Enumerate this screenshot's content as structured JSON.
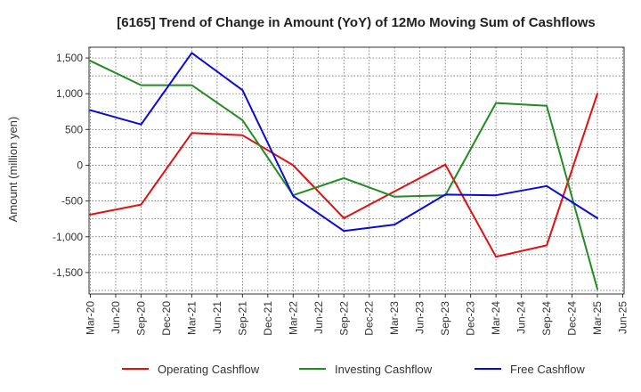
{
  "chart_data": {
    "type": "line",
    "title": "[6165]  Trend of Change in Amount (YoY) of 12Mo Moving Sum of Cashflows",
    "xlabel": "",
    "ylabel": "Amount (million yen)",
    "ylim": [
      -1800,
      1650
    ],
    "yticks": [
      1500,
      1000,
      500,
      0,
      -500,
      -1000,
      -1500
    ],
    "ytick_labels": [
      "1,500",
      "1,000",
      "500",
      "0",
      "-500",
      "-1,000",
      "-1,500"
    ],
    "categories": [
      "Mar-20",
      "Jun-20",
      "Sep-20",
      "Dec-20",
      "Mar-21",
      "Jun-21",
      "Sep-21",
      "Dec-21",
      "Mar-22",
      "Jun-22",
      "Sep-22",
      "Dec-22",
      "Mar-23",
      "Jun-23",
      "Sep-23",
      "Dec-23",
      "Mar-24",
      "Jun-24",
      "Sep-24",
      "Dec-24",
      "Mar-25",
      "Jun-25"
    ],
    "grid": true,
    "legend_position": "bottom",
    "series": [
      {
        "name": "Operating Cashflow",
        "color": "#e01010",
        "points": [
          {
            "x": "Mar-20",
            "y": -690
          },
          {
            "x": "Sep-20",
            "y": -550
          },
          {
            "x": "Mar-21",
            "y": 450
          },
          {
            "x": "Sep-21",
            "y": 420
          },
          {
            "x": "Mar-22",
            "y": 0
          },
          {
            "x": "Sep-22",
            "y": -740
          },
          {
            "x": "Sep-23",
            "y": 10
          },
          {
            "x": "Mar-24",
            "y": -1280
          },
          {
            "x": "Sep-24",
            "y": -1120
          },
          {
            "x": "Mar-25",
            "y": 1000
          }
        ]
      },
      {
        "name": "Investing Cashflow",
        "color": "#228b22",
        "points": [
          {
            "x": "Mar-20",
            "y": 1460
          },
          {
            "x": "Sep-20",
            "y": 1120
          },
          {
            "x": "Mar-21",
            "y": 1120
          },
          {
            "x": "Sep-21",
            "y": 630
          },
          {
            "x": "Mar-22",
            "y": -420
          },
          {
            "x": "Sep-22",
            "y": -180
          },
          {
            "x": "Mar-23",
            "y": -440
          },
          {
            "x": "Sep-23",
            "y": -420
          },
          {
            "x": "Mar-24",
            "y": 870
          },
          {
            "x": "Sep-24",
            "y": 830
          },
          {
            "x": "Mar-25",
            "y": -1730
          }
        ]
      },
      {
        "name": "Free Cashflow",
        "color": "#0a0adc",
        "points": [
          {
            "x": "Mar-20",
            "y": 770
          },
          {
            "x": "Sep-20",
            "y": 570
          },
          {
            "x": "Mar-21",
            "y": 1570
          },
          {
            "x": "Sep-21",
            "y": 1050
          },
          {
            "x": "Mar-22",
            "y": -430
          },
          {
            "x": "Sep-22",
            "y": -920
          },
          {
            "x": "Mar-23",
            "y": -830
          },
          {
            "x": "Sep-23",
            "y": -410
          },
          {
            "x": "Mar-24",
            "y": -420
          },
          {
            "x": "Sep-24",
            "y": -290
          },
          {
            "x": "Mar-25",
            "y": -740
          }
        ]
      }
    ]
  }
}
